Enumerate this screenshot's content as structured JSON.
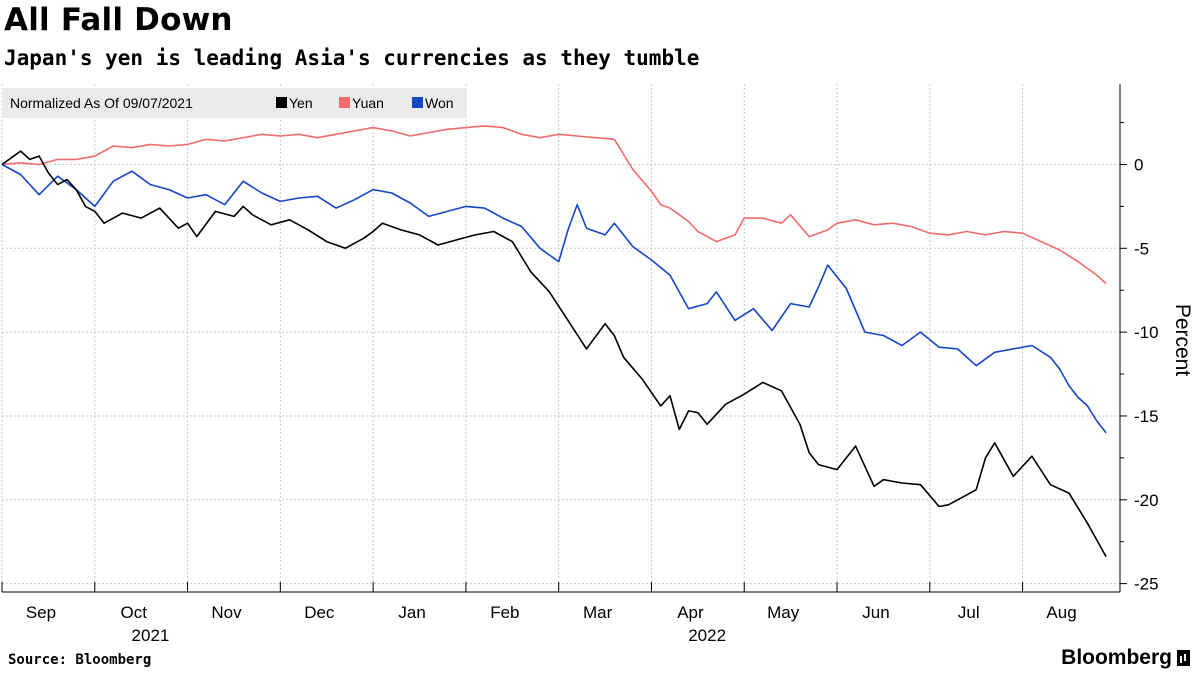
{
  "header": {
    "title": "All Fall Down",
    "subtitle": "Japan's yen is leading Asia's currencies as they tumble"
  },
  "footer": {
    "source": "Source: Bloomberg",
    "logo_text": "Bloomberg"
  },
  "colors": {
    "yen": "#000000",
    "yuan": "#f26b6b",
    "won": "#1446c8",
    "grid": "#c8c8c8",
    "legend_bg": "#ebebeb"
  },
  "chart_data": {
    "type": "line",
    "title": "All Fall Down",
    "subtitle": "Japan's yen is leading Asia's currencies as they tumble",
    "legend_title": "Normalized As Of 09/07/2021",
    "xlabel": "",
    "ylabel": "Percent",
    "ylim": [
      -25,
      5
    ],
    "yticks": [
      0,
      -5,
      -10,
      -15,
      -20,
      -25
    ],
    "x_range_months": [
      0,
      11.9
    ],
    "month_ticks": [
      {
        "label": "Sep",
        "month": 0
      },
      {
        "label": "Oct",
        "month": 1
      },
      {
        "label": "Nov",
        "month": 2
      },
      {
        "label": "Dec",
        "month": 3
      },
      {
        "label": "Jan",
        "month": 4
      },
      {
        "label": "Feb",
        "month": 5
      },
      {
        "label": "Mar",
        "month": 6
      },
      {
        "label": "Apr",
        "month": 7
      },
      {
        "label": "May",
        "month": 8
      },
      {
        "label": "Jun",
        "month": 9
      },
      {
        "label": "Jul",
        "month": 10
      },
      {
        "label": "Aug",
        "month": 11
      }
    ],
    "year_labels": [
      {
        "label": "2021",
        "month": 1.6
      },
      {
        "label": "2022",
        "month": 7.6
      }
    ],
    "x_unit": "months since 2021-09-07",
    "series": [
      {
        "name": "Yen",
        "color": "#000000",
        "x": [
          0,
          0.1,
          0.2,
          0.3,
          0.4,
          0.5,
          0.6,
          0.7,
          0.8,
          0.9,
          1.0,
          1.1,
          1.3,
          1.5,
          1.7,
          1.9,
          2.0,
          2.1,
          2.3,
          2.5,
          2.6,
          2.7,
          2.9,
          3.1,
          3.3,
          3.5,
          3.7,
          3.9,
          4.0,
          4.1,
          4.3,
          4.5,
          4.7,
          4.9,
          5.1,
          5.3,
          5.5,
          5.7,
          5.9,
          6.1,
          6.3,
          6.5,
          6.6,
          6.7,
          6.9,
          7.1,
          7.2,
          7.3,
          7.4,
          7.5,
          7.6,
          7.8,
          8.0,
          8.2,
          8.4,
          8.6,
          8.7,
          8.8,
          9.0,
          9.2,
          9.4,
          9.5,
          9.7,
          9.9,
          10.1,
          10.2,
          10.4,
          10.5,
          10.6,
          10.7,
          10.9,
          11.1,
          11.3,
          11.5,
          11.7,
          11.8,
          11.9
        ],
        "values": [
          0.0,
          0.4,
          0.8,
          0.3,
          0.5,
          -0.5,
          -1.2,
          -0.9,
          -1.5,
          -2.5,
          -2.8,
          -3.5,
          -2.9,
          -3.2,
          -2.6,
          -3.8,
          -3.5,
          -4.3,
          -2.8,
          -3.1,
          -2.5,
          -3.0,
          -3.6,
          -3.3,
          -3.9,
          -4.6,
          -5.0,
          -4.4,
          -4.0,
          -3.5,
          -3.9,
          -4.2,
          -4.8,
          -4.5,
          -4.2,
          -4.0,
          -4.6,
          -6.4,
          -7.6,
          -9.3,
          -11.0,
          -9.5,
          -10.2,
          -11.5,
          -12.8,
          -14.4,
          -13.8,
          -15.8,
          -14.7,
          -14.8,
          -15.5,
          -14.3,
          -13.7,
          -13.0,
          -13.5,
          -15.5,
          -17.2,
          -17.9,
          -18.2,
          -16.8,
          -19.2,
          -18.8,
          -19.0,
          -19.1,
          -20.4,
          -20.3,
          -19.7,
          -19.4,
          -17.5,
          -16.6,
          -18.6,
          -17.4,
          -19.1,
          -19.6,
          -21.4,
          -22.4,
          -23.4
        ]
      },
      {
        "name": "Yuan",
        "color": "#f26b6b",
        "x": [
          0,
          0.2,
          0.4,
          0.6,
          0.8,
          1.0,
          1.2,
          1.4,
          1.6,
          1.8,
          2.0,
          2.2,
          2.4,
          2.6,
          2.8,
          3.0,
          3.2,
          3.4,
          3.6,
          3.8,
          4.0,
          4.2,
          4.4,
          4.6,
          4.8,
          5.0,
          5.2,
          5.4,
          5.6,
          5.8,
          6.0,
          6.2,
          6.4,
          6.6,
          6.8,
          7.0,
          7.1,
          7.2,
          7.3,
          7.4,
          7.5,
          7.7,
          7.9,
          8.0,
          8.2,
          8.4,
          8.5,
          8.7,
          8.9,
          9.0,
          9.2,
          9.4,
          9.6,
          9.8,
          10.0,
          10.2,
          10.4,
          10.6,
          10.8,
          11.0,
          11.2,
          11.4,
          11.6,
          11.7,
          11.8,
          11.9
        ],
        "values": [
          0.0,
          0.1,
          0.0,
          0.3,
          0.3,
          0.5,
          1.1,
          1.0,
          1.2,
          1.1,
          1.2,
          1.5,
          1.4,
          1.6,
          1.8,
          1.7,
          1.8,
          1.6,
          1.8,
          2.0,
          2.2,
          2.0,
          1.7,
          1.9,
          2.1,
          2.2,
          2.3,
          2.2,
          1.8,
          1.6,
          1.8,
          1.7,
          1.6,
          1.5,
          -0.3,
          -1.6,
          -2.4,
          -2.6,
          -3.0,
          -3.4,
          -4.0,
          -4.6,
          -4.2,
          -3.2,
          -3.2,
          -3.5,
          -3.0,
          -4.3,
          -3.9,
          -3.5,
          -3.3,
          -3.6,
          -3.5,
          -3.7,
          -4.1,
          -4.2,
          -4.0,
          -4.2,
          -4.0,
          -4.1,
          -4.6,
          -5.1,
          -5.8,
          -6.2,
          -6.6,
          -7.1
        ]
      },
      {
        "name": "Won",
        "color": "#1446c8",
        "x": [
          0,
          0.2,
          0.4,
          0.6,
          0.8,
          1.0,
          1.2,
          1.4,
          1.6,
          1.8,
          2.0,
          2.2,
          2.4,
          2.6,
          2.8,
          3.0,
          3.2,
          3.4,
          3.6,
          3.8,
          4.0,
          4.2,
          4.4,
          4.6,
          4.8,
          5.0,
          5.2,
          5.4,
          5.6,
          5.8,
          5.9,
          6.0,
          6.1,
          6.2,
          6.3,
          6.5,
          6.6,
          6.8,
          7.0,
          7.2,
          7.4,
          7.6,
          7.7,
          7.9,
          8.1,
          8.3,
          8.5,
          8.7,
          8.8,
          8.9,
          9.1,
          9.3,
          9.5,
          9.7,
          9.9,
          10.1,
          10.3,
          10.5,
          10.7,
          10.9,
          11.1,
          11.3,
          11.4,
          11.5,
          11.6,
          11.7,
          11.8,
          11.9
        ],
        "values": [
          0.0,
          -0.6,
          -1.8,
          -0.7,
          -1.5,
          -2.5,
          -1.0,
          -0.4,
          -1.2,
          -1.5,
          -2.0,
          -1.8,
          -2.4,
          -1.0,
          -1.7,
          -2.2,
          -2.0,
          -1.9,
          -2.6,
          -2.1,
          -1.5,
          -1.7,
          -2.3,
          -3.1,
          -2.8,
          -2.5,
          -2.6,
          -3.2,
          -3.7,
          -5.0,
          -5.4,
          -5.8,
          -3.9,
          -2.4,
          -3.8,
          -4.2,
          -3.5,
          -4.9,
          -5.7,
          -6.6,
          -8.6,
          -8.3,
          -7.6,
          -9.3,
          -8.6,
          -9.9,
          -8.3,
          -8.5,
          -7.3,
          -6.0,
          -7.4,
          -10.0,
          -10.2,
          -10.8,
          -10.0,
          -10.9,
          -11.0,
          -12.0,
          -11.2,
          -11.0,
          -10.8,
          -11.5,
          -12.2,
          -13.2,
          -13.9,
          -14.4,
          -15.3,
          -16.0
        ]
      }
    ]
  }
}
